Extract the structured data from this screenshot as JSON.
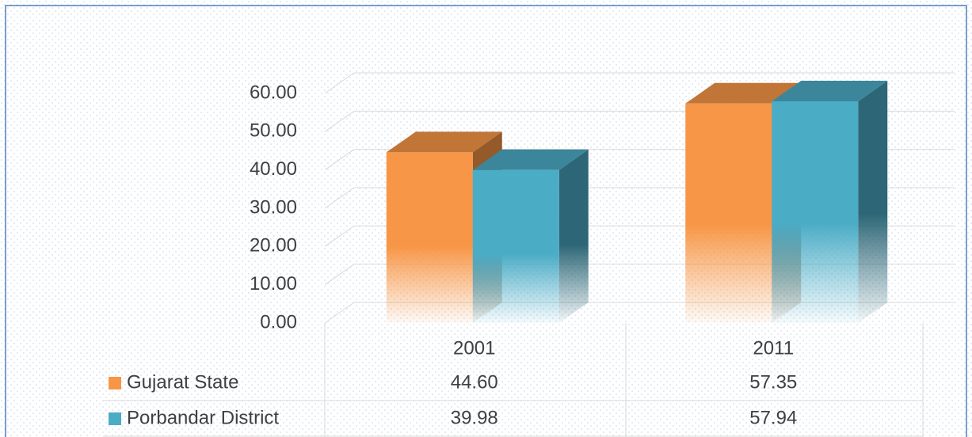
{
  "chart_data": {
    "type": "bar3d",
    "categories": [
      "2001",
      "2011"
    ],
    "series": [
      {
        "name": "Gujarat State",
        "color": "#f79646",
        "values": [
          44.6,
          57.35
        ],
        "value_labels": [
          "44.60",
          "57.35"
        ]
      },
      {
        "name": "Porbandar District",
        "color": "#4bacc6",
        "values": [
          39.98,
          57.94
        ],
        "value_labels": [
          "39.98",
          "57.94"
        ]
      }
    ],
    "ylim": [
      0,
      60
    ],
    "yticks": [
      {
        "value": 0,
        "label": "0.00"
      },
      {
        "value": 10,
        "label": "10.00"
      },
      {
        "value": 20,
        "label": "20.00"
      },
      {
        "value": 30,
        "label": "30.00"
      },
      {
        "value": 40,
        "label": "40.00"
      },
      {
        "value": 50,
        "label": "50.00"
      },
      {
        "value": 60,
        "label": "60.00"
      }
    ],
    "grid": true
  }
}
